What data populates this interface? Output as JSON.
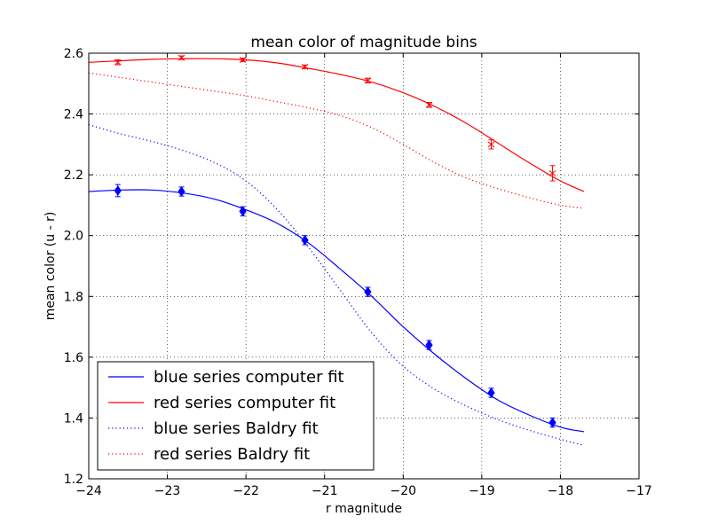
{
  "chart_data": {
    "type": "line",
    "title": "mean color of magnitude bins",
    "xlabel": "r magnitude",
    "ylabel": "mean color (u - r)",
    "xlim": [
      -24,
      -17
    ],
    "ylim": [
      1.2,
      2.6
    ],
    "x_ticks": [
      "−24",
      "−23",
      "−22",
      "−21",
      "−20",
      "−19",
      "−18",
      "−17"
    ],
    "y_ticks": [
      "1.2",
      "1.4",
      "1.6",
      "1.8",
      "2.0",
      "2.2",
      "2.4",
      "2.6"
    ],
    "grid": true,
    "legend_position": "lower-left",
    "series": [
      {
        "name": "blue series computer fit",
        "color": "#0000ff",
        "style": "solid",
        "x": [
          -24.0,
          -23.6,
          -23.2,
          -22.8,
          -22.4,
          -22.0,
          -21.6,
          -21.2,
          -20.8,
          -20.4,
          -20.0,
          -19.6,
          -19.2,
          -18.8,
          -18.4,
          -18.0,
          -17.7
        ],
        "y": [
          2.145,
          2.15,
          2.15,
          2.14,
          2.12,
          2.085,
          2.04,
          1.975,
          1.89,
          1.8,
          1.7,
          1.61,
          1.53,
          1.46,
          1.41,
          1.37,
          1.355
        ]
      },
      {
        "name": "red series computer fit",
        "color": "#ff0000",
        "style": "solid",
        "x": [
          -24.0,
          -23.6,
          -23.2,
          -22.8,
          -22.4,
          -22.0,
          -21.6,
          -21.2,
          -20.8,
          -20.4,
          -20.0,
          -19.6,
          -19.2,
          -18.8,
          -18.4,
          -18.0,
          -17.7
        ],
        "y": [
          2.57,
          2.575,
          2.58,
          2.582,
          2.582,
          2.578,
          2.568,
          2.55,
          2.53,
          2.505,
          2.47,
          2.425,
          2.37,
          2.305,
          2.24,
          2.18,
          2.145
        ]
      },
      {
        "name": "blue series Baldry fit",
        "color": "#0000ff",
        "style": "dotted",
        "x": [
          -24.0,
          -23.6,
          -23.2,
          -22.8,
          -22.4,
          -22.0,
          -21.6,
          -21.2,
          -20.8,
          -20.4,
          -20.0,
          -19.6,
          -19.2,
          -18.8,
          -18.4,
          -18.0,
          -17.7
        ],
        "y": [
          2.365,
          2.335,
          2.31,
          2.28,
          2.24,
          2.18,
          2.085,
          1.96,
          1.82,
          1.68,
          1.57,
          1.495,
          1.44,
          1.395,
          1.36,
          1.33,
          1.31
        ]
      },
      {
        "name": "red series Baldry fit",
        "color": "#ff0000",
        "style": "dotted",
        "x": [
          -24.0,
          -23.6,
          -23.2,
          -22.8,
          -22.4,
          -22.0,
          -21.6,
          -21.2,
          -20.8,
          -20.4,
          -20.0,
          -19.6,
          -19.2,
          -18.8,
          -18.4,
          -18.0,
          -17.7
        ],
        "y": [
          2.535,
          2.52,
          2.505,
          2.49,
          2.475,
          2.46,
          2.44,
          2.42,
          2.395,
          2.355,
          2.3,
          2.24,
          2.19,
          2.155,
          2.125,
          2.1,
          2.09
        ]
      }
    ],
    "points": [
      {
        "series": "blue data",
        "color": "#0000ff",
        "marker": "diamond",
        "x": [
          -23.63,
          -22.82,
          -22.04,
          -21.25,
          -20.45,
          -19.67,
          -18.88,
          -18.1
        ],
        "y": [
          2.148,
          2.145,
          2.08,
          1.985,
          1.815,
          1.64,
          1.483,
          1.385
        ],
        "err": [
          0.02,
          0.015,
          0.015,
          0.015,
          0.015,
          0.015,
          0.015,
          0.015
        ]
      },
      {
        "series": "red data",
        "color": "#ff0000",
        "marker": "x",
        "x": [
          -23.63,
          -22.82,
          -22.04,
          -21.25,
          -20.45,
          -19.67,
          -18.88,
          -18.1
        ],
        "y": [
          2.57,
          2.585,
          2.578,
          2.555,
          2.51,
          2.43,
          2.3,
          2.205
        ],
        "err": [
          0.008,
          0.006,
          0.006,
          0.006,
          0.008,
          0.008,
          0.015,
          0.025
        ]
      }
    ]
  }
}
